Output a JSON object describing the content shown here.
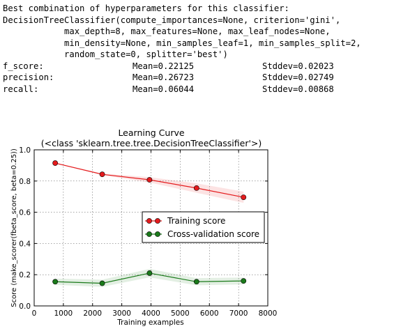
{
  "console": {
    "lines": [
      "Best combination of hyperparameters for this classifier:",
      "DecisionTreeClassifier(compute_importances=None, criterion='gini',",
      "            max_depth=8, max_features=None, max_leaf_nodes=None,",
      "            min_density=None, min_samples_leaf=1, min_samples_split=2,",
      "            random_state=0, splitter='best')"
    ],
    "metrics": [
      {
        "name": "f_score:",
        "mean": "Mean=0.22125",
        "std": "Stddev=0.02023"
      },
      {
        "name": "precision:",
        "mean": "Mean=0.26723",
        "std": "Stddev=0.02749"
      },
      {
        "name": "recall:",
        "mean": "Mean=0.06044",
        "std": "Stddev=0.00868"
      }
    ]
  },
  "chart_data": {
    "type": "line",
    "title": "Learning Curve",
    "subtitle": "(<class 'sklearn.tree.tree.DecisionTreeClassifier'>)",
    "xlabel": "Training examples",
    "ylabel": "Score (make_scorer(fbeta_score, beta=0.25))",
    "xlim": [
      0,
      8000
    ],
    "ylim": [
      0.0,
      1.0
    ],
    "xticks": [
      "0",
      "1000",
      "2000",
      "3000",
      "4000",
      "5000",
      "6000",
      "7000",
      "8000"
    ],
    "yticks": [
      "0.0",
      "0.2",
      "0.4",
      "0.6",
      "0.8",
      "1.0"
    ],
    "grid": true,
    "legend": "center-right",
    "series": [
      {
        "name": "Training score",
        "color": "#e41a1c",
        "x": [
          720,
          2330,
          3950,
          5560,
          7170
        ],
        "values": [
          0.915,
          0.843,
          0.808,
          0.755,
          0.696
        ],
        "upper": [
          0.917,
          0.848,
          0.825,
          0.785,
          0.732
        ],
        "lower": [
          0.913,
          0.838,
          0.791,
          0.725,
          0.66
        ]
      },
      {
        "name": "Cross-validation score",
        "color": "#1a7a1a",
        "x": [
          720,
          2330,
          3950,
          5560,
          7170
        ],
        "values": [
          0.155,
          0.145,
          0.21,
          0.155,
          0.16
        ],
        "upper": [
          0.175,
          0.168,
          0.237,
          0.178,
          0.182
        ],
        "lower": [
          0.135,
          0.122,
          0.183,
          0.132,
          0.138
        ]
      }
    ]
  }
}
